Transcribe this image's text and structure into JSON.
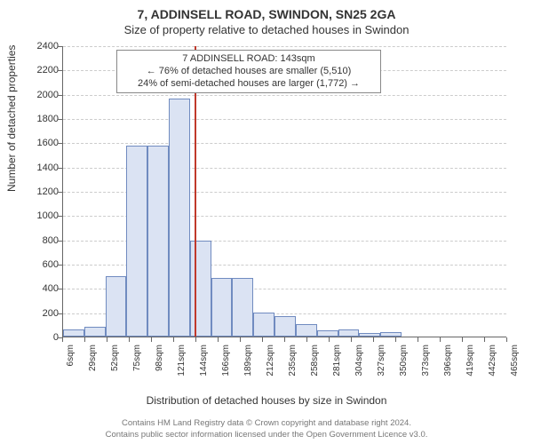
{
  "title": "7, ADDINSELL ROAD, SWINDON, SN25 2GA",
  "subtitle": "Size of property relative to detached houses in Swindon",
  "chart": {
    "type": "histogram",
    "x_label": "Distribution of detached houses by size in Swindon",
    "y_label": "Number of detached properties",
    "bar_fill": "#dbe3f3",
    "bar_stroke": "#708bc0",
    "background_color": "#ffffff",
    "grid_color": "#cccccc",
    "axis_color": "#666666",
    "marker_color": "#c0392b",
    "marker_x": 143,
    "y_max": 2400,
    "y_tick_step": 200,
    "y_ticks": [
      "0",
      "200",
      "400",
      "600",
      "800",
      "1000",
      "1200",
      "1400",
      "1600",
      "1800",
      "2000",
      "2200",
      "2400"
    ],
    "x_min": 0,
    "x_max": 483,
    "x_ticks": [
      "6sqm",
      "29sqm",
      "52sqm",
      "75sqm",
      "98sqm",
      "121sqm",
      "144sqm",
      "166sqm",
      "189sqm",
      "212sqm",
      "235sqm",
      "258sqm",
      "281sqm",
      "304sqm",
      "327sqm",
      "350sqm",
      "373sqm",
      "396sqm",
      "419sqm",
      "442sqm",
      "465sqm"
    ],
    "bars": [
      {
        "x0": 0,
        "x1": 23,
        "count": 60
      },
      {
        "x0": 23,
        "x1": 46,
        "count": 80
      },
      {
        "x0": 46,
        "x1": 69,
        "count": 500
      },
      {
        "x0": 69,
        "x1": 92,
        "count": 1570
      },
      {
        "x0": 92,
        "x1": 115,
        "count": 1570
      },
      {
        "x0": 115,
        "x1": 138,
        "count": 1960
      },
      {
        "x0": 138,
        "x1": 161,
        "count": 790
      },
      {
        "x0": 161,
        "x1": 184,
        "count": 480
      },
      {
        "x0": 184,
        "x1": 207,
        "count": 480
      },
      {
        "x0": 207,
        "x1": 230,
        "count": 200
      },
      {
        "x0": 230,
        "x1": 253,
        "count": 170
      },
      {
        "x0": 253,
        "x1": 276,
        "count": 100
      },
      {
        "x0": 276,
        "x1": 299,
        "count": 50
      },
      {
        "x0": 299,
        "x1": 322,
        "count": 60
      },
      {
        "x0": 322,
        "x1": 345,
        "count": 30
      },
      {
        "x0": 345,
        "x1": 368,
        "count": 40
      },
      {
        "x0": 368,
        "x1": 391,
        "count": 0
      },
      {
        "x0": 391,
        "x1": 414,
        "count": 0
      },
      {
        "x0": 414,
        "x1": 437,
        "count": 0
      },
      {
        "x0": 437,
        "x1": 460,
        "count": 0
      },
      {
        "x0": 460,
        "x1": 483,
        "count": 0
      }
    ],
    "annotation": {
      "line1": "7 ADDINSELL ROAD: 143sqm",
      "line2": "← 76% of detached houses are smaller (5,510)",
      "line3": "24% of semi-detached houses are larger (1,772) →"
    },
    "title_fontsize": 14,
    "subtitle_fontsize": 13,
    "label_fontsize": 12,
    "tick_fontsize": 11
  },
  "footer": {
    "line1": "Contains HM Land Registry data © Crown copyright and database right 2024.",
    "line2": "Contains public sector information licensed under the Open Government Licence v3.0."
  }
}
